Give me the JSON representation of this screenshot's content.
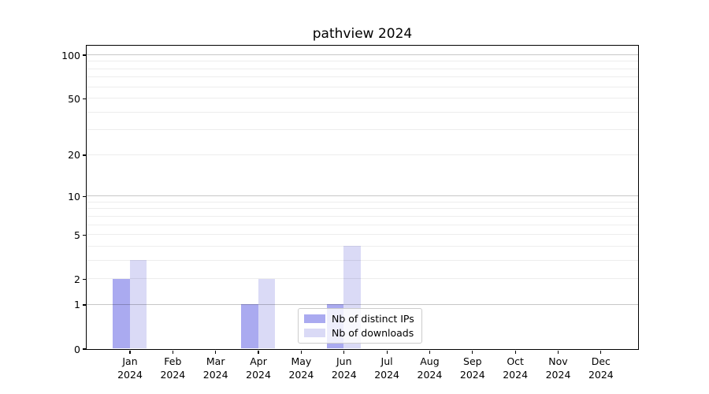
{
  "chart_data": {
    "type": "bar",
    "title": "pathview 2024",
    "categories": [
      "Jan",
      "Feb",
      "Mar",
      "Apr",
      "May",
      "Jun",
      "Jul",
      "Aug",
      "Sep",
      "Oct",
      "Nov",
      "Dec"
    ],
    "category_year": "2024",
    "series": [
      {
        "name": "Nb of distinct IPs",
        "color": "#aaaaf0",
        "values": [
          2,
          0,
          0,
          1,
          0,
          1,
          0,
          0,
          0,
          0,
          0,
          0
        ]
      },
      {
        "name": "Nb of downloads",
        "color": "#dadaf6",
        "values": [
          3,
          0,
          0,
          2,
          0,
          4,
          0,
          0,
          0,
          0,
          0,
          0
        ]
      }
    ],
    "xlabel": "",
    "ylabel": "",
    "y_axis": {
      "scale": "log1p",
      "range": [
        0,
        100
      ],
      "tick_values": [
        0,
        1,
        2,
        5,
        10,
        20,
        50,
        100
      ],
      "tick_labels": [
        "0",
        "1",
        "2",
        "5",
        "10",
        "20",
        "50",
        "100"
      ],
      "major_gridlines": [
        1,
        10,
        100
      ],
      "minor_gridlines": [
        2,
        3,
        4,
        5,
        6,
        7,
        8,
        9,
        20,
        30,
        40,
        50,
        60,
        70,
        80,
        90
      ]
    },
    "grid": "on",
    "legend_position": "lower center"
  }
}
